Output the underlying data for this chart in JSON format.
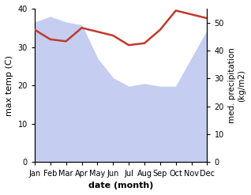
{
  "months": [
    "Jan",
    "Feb",
    "Mar",
    "Apr",
    "May",
    "Jun",
    "Jul",
    "Aug",
    "Sep",
    "Oct",
    "Nov",
    "Dec"
  ],
  "temp": [
    34.5,
    32.0,
    31.5,
    35.0,
    34.0,
    33.0,
    30.5,
    31.0,
    34.5,
    39.5,
    38.5,
    37.5
  ],
  "precip": [
    50.0,
    52.0,
    50.0,
    49.0,
    37.0,
    30.0,
    27.0,
    28.0,
    27.0,
    27.0,
    37.0,
    47.0
  ],
  "temp_color": "#c0392b",
  "precip_fill_color": "#c5cef0",
  "temp_ylim": [
    0,
    40
  ],
  "precip_ylim": [
    0,
    55
  ],
  "temp_yticks": [
    0,
    10,
    20,
    30,
    40
  ],
  "precip_yticks": [
    0,
    10,
    20,
    30,
    40,
    50
  ],
  "xlabel": "date (month)",
  "ylabel_left": "max temp (C)",
  "ylabel_right": "med. precipitation\n(kg/m2)",
  "figsize": [
    3.18,
    2.47
  ],
  "dpi": 100
}
